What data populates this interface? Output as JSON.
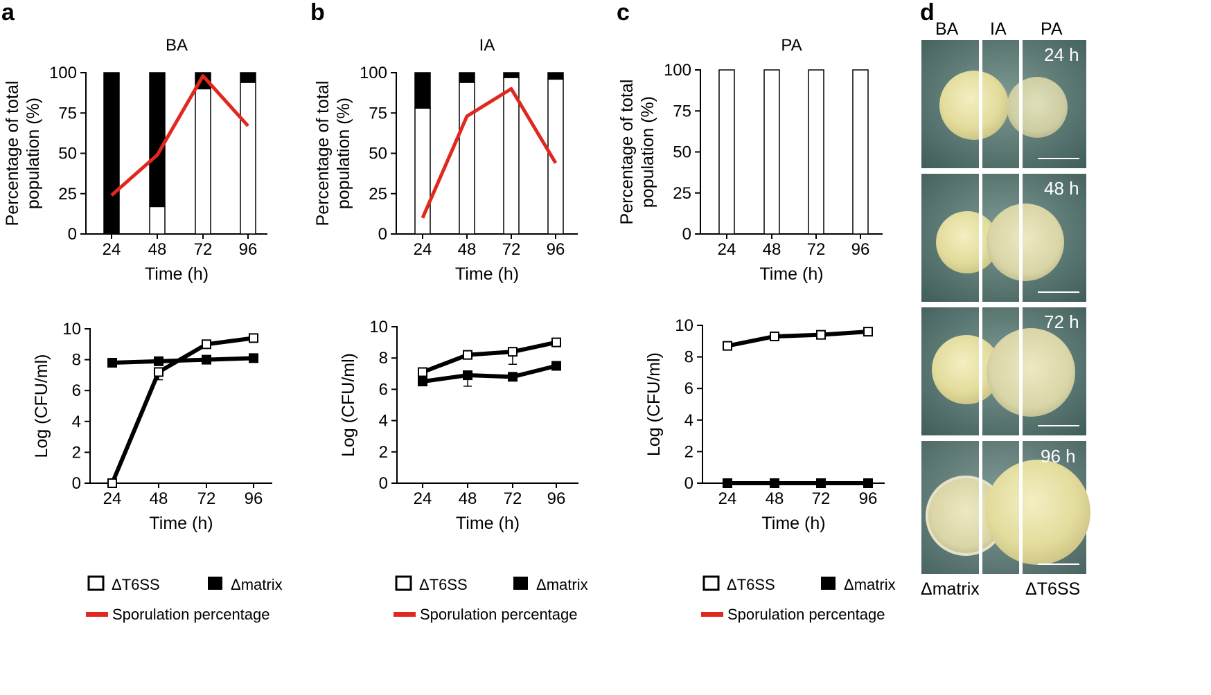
{
  "panel_letters": [
    "a",
    "b",
    "c",
    "d"
  ],
  "bar_ylabel_line1": "Percentage of total",
  "bar_ylabel_line2": "population (%)",
  "line_ylabel": "Log (CFU/ml)",
  "xlabel": "Time (h)",
  "legend": {
    "t6ss": "ΔT6SS",
    "matrix": "Δmatrix",
    "sporulation": "Sporulation percentage"
  },
  "colors": {
    "t6ss": "#ffffff",
    "matrix": "#000000",
    "sporulation": "#e0281e"
  },
  "chart_data": [
    {
      "id": "a-bar",
      "type": "bar",
      "stacked": true,
      "title": "BA",
      "categories": [
        "24",
        "48",
        "72",
        "96"
      ],
      "ylim": [
        0,
        100
      ],
      "yticks": [
        0,
        25,
        50,
        75,
        100
      ],
      "series": [
        {
          "name": "ΔT6SS",
          "values": [
            0,
            17,
            90,
            94
          ]
        },
        {
          "name": "Δmatrix",
          "values": [
            100,
            83,
            10,
            6
          ]
        },
        {
          "name": "Sporulation percentage",
          "kind": "line",
          "values": [
            24,
            49,
            98,
            67
          ]
        }
      ]
    },
    {
      "id": "b-bar",
      "type": "bar",
      "stacked": true,
      "title": "IA",
      "categories": [
        "24",
        "48",
        "72",
        "96"
      ],
      "ylim": [
        0,
        100
      ],
      "yticks": [
        0,
        25,
        50,
        75,
        100
      ],
      "series": [
        {
          "name": "ΔT6SS",
          "values": [
            78,
            94,
            97,
            96
          ]
        },
        {
          "name": "Δmatrix",
          "values": [
            22,
            6,
            3,
            4
          ]
        },
        {
          "name": "Sporulation percentage",
          "kind": "line",
          "values": [
            10,
            73,
            90,
            44
          ]
        }
      ]
    },
    {
      "id": "c-bar",
      "type": "bar",
      "stacked": true,
      "title": "PA",
      "categories": [
        "24",
        "48",
        "72",
        "96"
      ],
      "ylim": [
        0,
        100
      ],
      "yticks": [
        0,
        25,
        50,
        75,
        100
      ],
      "series": [
        {
          "name": "ΔT6SS",
          "values": [
            100,
            100,
            100,
            100
          ]
        },
        {
          "name": "Δmatrix",
          "values": [
            0,
            0,
            0,
            0
          ]
        }
      ]
    },
    {
      "id": "a-line",
      "type": "line",
      "title": "",
      "categories": [
        "24",
        "48",
        "72",
        "96"
      ],
      "ylim": [
        0,
        10
      ],
      "yticks": [
        0,
        2,
        4,
        6,
        8,
        10
      ],
      "series": [
        {
          "name": "ΔT6SS",
          "values": [
            0,
            7.2,
            9.0,
            9.4
          ],
          "err": [
            0,
            0.5,
            0,
            0
          ]
        },
        {
          "name": "Δmatrix",
          "values": [
            7.8,
            7.9,
            8.0,
            8.1
          ],
          "err": [
            0,
            0,
            0,
            0
          ]
        }
      ]
    },
    {
      "id": "b-line",
      "type": "line",
      "title": "",
      "categories": [
        "24",
        "48",
        "72",
        "96"
      ],
      "ylim": [
        0,
        10
      ],
      "yticks": [
        0,
        2,
        4,
        6,
        8,
        10
      ],
      "series": [
        {
          "name": "ΔT6SS",
          "values": [
            7.1,
            8.2,
            8.4,
            9.0
          ],
          "err": [
            0,
            0,
            0.8,
            0
          ]
        },
        {
          "name": "Δmatrix",
          "values": [
            6.5,
            6.9,
            6.8,
            7.5
          ],
          "err": [
            0,
            0.7,
            0,
            0
          ]
        }
      ]
    },
    {
      "id": "c-line",
      "type": "line",
      "title": "",
      "categories": [
        "24",
        "48",
        "72",
        "96"
      ],
      "ylim": [
        0,
        10
      ],
      "yticks": [
        0,
        2,
        4,
        6,
        8,
        10
      ],
      "series": [
        {
          "name": "ΔT6SS",
          "values": [
            8.7,
            9.3,
            9.4,
            9.6
          ],
          "err": [
            0,
            0,
            0,
            0
          ]
        },
        {
          "name": "Δmatrix",
          "values": [
            0,
            0,
            0,
            0
          ],
          "err": [
            0,
            0,
            0,
            0
          ]
        }
      ]
    }
  ],
  "photos": {
    "column_labels": [
      "BA",
      "IA",
      "PA"
    ],
    "times": [
      "24 h",
      "48 h",
      "72 h",
      "96 h"
    ],
    "bottom_left": "Δmatrix",
    "bottom_right": "ΔT6SS"
  }
}
